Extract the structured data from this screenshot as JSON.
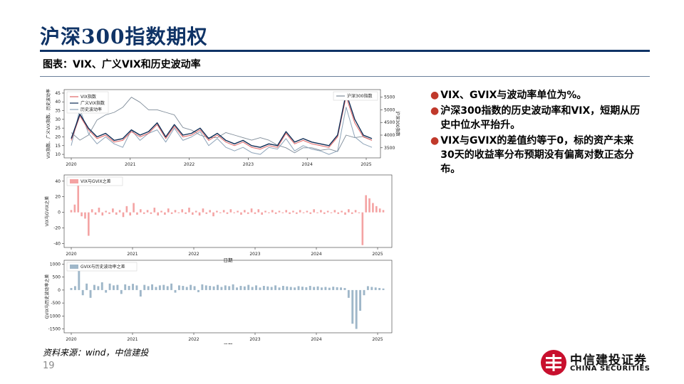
{
  "slide": {
    "title": "沪深300指数期权",
    "caption": "图表：VIX、广义VIX和历史波动率",
    "source": "资料来源：wind，中信建投",
    "page_number": "19",
    "logo_cn": "中信建投证券",
    "logo_en": "CHINA SECURITIES"
  },
  "bullets": [
    "VIX、GVIX与波动率单位为%。",
    "沪深300指数的历史波动率和VIX，短期从历史中位水平抬升。",
    "VIX与GVIX的差值约等于0，标的资产未来30天的收益率分布预期没有偏离对数正态分布。"
  ],
  "colors": {
    "title": "#0f3366",
    "bullet_dot": "#c0392b",
    "vix": "#e06666",
    "gvix": "#0d2c55",
    "hv": "#8da3b8",
    "hs300": "#7f8c99",
    "diff_vix": "#f4a3a3",
    "diff_hv": "#9fb7c9"
  },
  "chart_data": [
    {
      "type": "line",
      "x_ticks": [
        "2020",
        "2021",
        "2022",
        "2023",
        "2024",
        "2025"
      ],
      "ylabel_left": "VIX指数、广义VIX指数、历史波动率",
      "ylabel_right": "沪深300指数",
      "y_ticks_left": [
        10,
        15,
        20,
        25,
        30,
        35,
        40,
        45
      ],
      "y_ticks_right": [
        3500,
        4000,
        4500,
        5000,
        5500
      ],
      "ylim_left": [
        8,
        47
      ],
      "ylim_right": [
        3100,
        5800
      ],
      "legend_left": "top-left",
      "legend_right": "top-right",
      "series": [
        {
          "name": "VIX指数",
          "axis": "left",
          "values": [
            18,
            32,
            24,
            19,
            21,
            17,
            18,
            23,
            20,
            22,
            27,
            19,
            26,
            20,
            21,
            24,
            18,
            21,
            17,
            15,
            17,
            14,
            13,
            15,
            14,
            22,
            16,
            18,
            16,
            15,
            14,
            20,
            43,
            28,
            20,
            18
          ]
        },
        {
          "name": "广义VIX指数",
          "axis": "left",
          "values": [
            19,
            33,
            25,
            20,
            22,
            18,
            19,
            24,
            21,
            23,
            28,
            20,
            27,
            21,
            22,
            25,
            19,
            22,
            18,
            16,
            18,
            15,
            14,
            16,
            15,
            23,
            17,
            19,
            17,
            16,
            15,
            21,
            45,
            30,
            21,
            19
          ]
        },
        {
          "name": "历史波动率",
          "axis": "left",
          "values": [
            15,
            36,
            22,
            16,
            20,
            16,
            14,
            24,
            18,
            22,
            24,
            17,
            25,
            18,
            20,
            23,
            15,
            19,
            14,
            12,
            14,
            11,
            10,
            14,
            13,
            19,
            12,
            15,
            13,
            12,
            10,
            12,
            37,
            20,
            16,
            14
          ]
        },
        {
          "name": "沪深300指数",
          "axis": "right",
          "values": [
            4100,
            3800,
            4000,
            4600,
            4800,
            4900,
            5100,
            5500,
            5300,
            5000,
            5000,
            4900,
            4800,
            4300,
            4200,
            4000,
            3900,
            3900,
            4100,
            4000,
            3900,
            3800,
            3900,
            3800,
            3600,
            3500,
            3300,
            3500,
            3500,
            3400,
            3450,
            3350,
            4000,
            3900,
            3950,
            3800
          ]
        }
      ]
    },
    {
      "type": "bar",
      "legend": "VIX与GVIX之差",
      "ylabel": "VIX与GVIX之差",
      "xlabel": "日期",
      "x_ticks": [
        "2020",
        "2021",
        "2022",
        "2023",
        "2024",
        "2025"
      ],
      "y_ticks": [
        -40,
        -20,
        0,
        20,
        40
      ],
      "ylim": [
        -45,
        48
      ],
      "values": [
        3,
        10,
        35,
        -5,
        -8,
        -30,
        4,
        -3,
        6,
        -4,
        2,
        -2,
        5,
        -3,
        3,
        -6,
        8,
        -4,
        12,
        -3,
        4,
        -2,
        3,
        -2,
        6,
        -4,
        2,
        -3,
        5,
        -2,
        3,
        -1,
        4,
        -2,
        6,
        -3,
        2,
        -4,
        5,
        -2,
        3,
        -5,
        2,
        -1,
        3,
        -2,
        4,
        -1,
        2,
        -3,
        3,
        -2,
        5,
        -2,
        4,
        -3,
        2,
        -1,
        3,
        -2,
        2,
        -1,
        3,
        -2,
        2,
        -2,
        3,
        -1,
        2,
        -2,
        4,
        -1,
        3,
        -2,
        2,
        -1,
        3,
        -2,
        2,
        -3,
        4,
        -2,
        3,
        -1,
        -42,
        22,
        18,
        12,
        8,
        5,
        3
      ]
    },
    {
      "type": "bar",
      "legend": "GVIX与历史波动率之差",
      "ylabel": "GVIX与历史波动率之差",
      "xlabel": "日期",
      "x_ticks": [
        "2020",
        "2021",
        "2022",
        "2023",
        "2024",
        "2025"
      ],
      "y_ticks": [
        -1500,
        -1000,
        -500,
        0,
        500,
        1000
      ],
      "ylim": [
        -1650,
        1150
      ],
      "values": [
        80,
        150,
        850,
        -200,
        250,
        -300,
        200,
        150,
        300,
        -100,
        250,
        180,
        200,
        -150,
        220,
        160,
        240,
        180,
        -250,
        200,
        150,
        220,
        120,
        180,
        200,
        150,
        250,
        -100,
        180,
        160,
        120,
        200,
        150,
        -80,
        220,
        180,
        160,
        140,
        200,
        120,
        180,
        150,
        220,
        100,
        160,
        140,
        200,
        120,
        180,
        100,
        160,
        140,
        120,
        180,
        100,
        160,
        140,
        120,
        100,
        150,
        130,
        110,
        160,
        120,
        140,
        100,
        120,
        90,
        130,
        110,
        100,
        80,
        -300,
        -1300,
        -1500,
        -800,
        -200,
        150,
        120,
        100,
        80,
        60
      ]
    }
  ]
}
